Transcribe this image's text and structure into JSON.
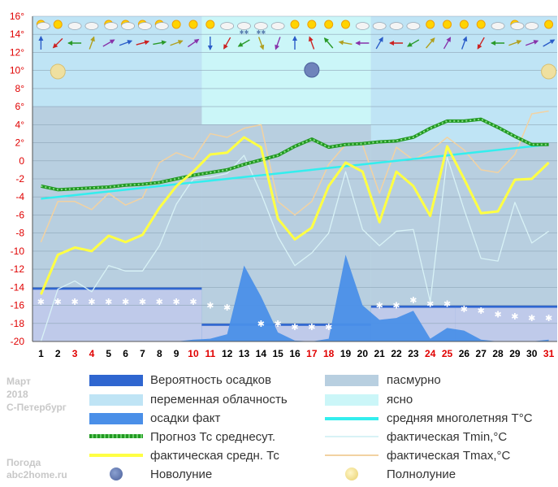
{
  "caption": {
    "month": "Март",
    "year": "2018",
    "city": "С-Петербург",
    "site_label": "Погода",
    "site": "abc2home.ru"
  },
  "colors": {
    "weekend": "#e00000",
    "weekday": "#000000",
    "ytick": "#e00000",
    "overcast": "#b8cfe0",
    "variable": "#bfe4f5",
    "clear": "#cbf6f8",
    "precip_prob": "#2f66d0",
    "precip_fact": "#4a8fe8",
    "forecast": "#229922",
    "actual_avg": "#ffff44",
    "norm": "#33eeee",
    "tmin": "#d8f2f6",
    "tmax": "#f2d2a2"
  },
  "legend": [
    {
      "key": "precip_prob",
      "label": "Вероятность осадков"
    },
    {
      "key": "overcast",
      "label": "пасмурно"
    },
    {
      "key": "variable",
      "label": "переменная облачность"
    },
    {
      "key": "clear",
      "label": "ясно"
    },
    {
      "key": "precip_fact",
      "label": "осадки факт"
    },
    {
      "key": "norm",
      "label": "средняя многолетняя T°C"
    },
    {
      "key": "forecast",
      "label": "Прогноз Тс среднесут."
    },
    {
      "key": "tmin",
      "label": "фактическая Tmin,°C"
    },
    {
      "key": "actual_avg",
      "label": "фактическая средн. Тс"
    },
    {
      "key": "tmax",
      "label": "фактическая Tmax,°C"
    },
    {
      "key": "new_moon",
      "label": "Новолуние"
    },
    {
      "key": "full_moon",
      "label": "Полнолуние"
    }
  ],
  "chart_data": {
    "type": "line",
    "title": "",
    "xlabel": "",
    "ylabel": "",
    "x": [
      1,
      2,
      3,
      4,
      5,
      6,
      7,
      8,
      9,
      10,
      11,
      12,
      13,
      14,
      15,
      16,
      17,
      18,
      19,
      20,
      21,
      22,
      23,
      24,
      25,
      26,
      27,
      28,
      29,
      30,
      31
    ],
    "weekend_days": [
      3,
      4,
      10,
      11,
      17,
      18,
      24,
      25,
      31
    ],
    "ylim": [
      -20,
      16
    ],
    "yticks": [
      16,
      14,
      12,
      10,
      8,
      6,
      4,
      2,
      0,
      -2,
      -4,
      -6,
      -8,
      -10,
      -12,
      -14,
      -16,
      -18,
      -20
    ],
    "ytick_labels": [
      "16°",
      "14°",
      "12°",
      "10°",
      "8°",
      "6°",
      "4°",
      "2°",
      "0",
      "-2",
      "-4",
      "-6",
      "-8",
      "-10",
      "-12",
      "-14",
      "-16",
      "-18",
      "-20"
    ],
    "cloudiness_periods": [
      {
        "from": 1,
        "to": 10,
        "kind": "variable"
      },
      {
        "from": 11,
        "to": 20,
        "kind": "clear"
      },
      {
        "from": 21,
        "to": 31,
        "kind": "variable"
      }
    ],
    "overcast_bands": [
      {
        "from": 1,
        "to": 10,
        "y_from": -20,
        "y_to": 6
      },
      {
        "from": 11,
        "to": 20,
        "y_from": -20,
        "y_to": 4
      },
      {
        "from": 21,
        "to": 31,
        "y_from": -20,
        "y_to": 2
      }
    ],
    "precipitation_probability": [
      {
        "from": 1,
        "to": 10,
        "level": -14
      },
      {
        "from": 11,
        "to": 20,
        "level": -18
      },
      {
        "from": 21,
        "to": 25,
        "level": -16
      },
      {
        "from": 26,
        "to": 31,
        "level": -16
      }
    ],
    "series": [
      {
        "name": "средняя многолетняя T°C",
        "key": "norm",
        "values": [
          -4.2,
          -4.0,
          -3.8,
          -3.6,
          -3.4,
          -3.2,
          -3.0,
          -2.8,
          -2.6,
          -2.4,
          -2.2,
          -2.0,
          -1.8,
          -1.6,
          -1.4,
          -1.2,
          -1.0,
          -0.8,
          -0.6,
          -0.4,
          -0.2,
          0.0,
          0.2,
          0.4,
          0.6,
          0.8,
          1.0,
          1.2,
          1.4,
          1.6,
          1.8
        ]
      },
      {
        "name": "Прогноз Тс среднесут.",
        "key": "forecast",
        "values": [
          -2.8,
          -3.2,
          -3.1,
          -3.0,
          -2.9,
          -2.7,
          -2.6,
          -2.4,
          -2.0,
          -1.6,
          -1.3,
          -1.0,
          -0.4,
          0.1,
          0.6,
          1.6,
          2.4,
          1.5,
          1.8,
          1.9,
          2.1,
          2.2,
          2.6,
          3.6,
          4.4,
          4.4,
          4.6,
          3.7,
          2.7,
          1.8,
          1.8
        ]
      },
      {
        "name": "фактическая Tmin,°C",
        "key": "tmin",
        "values": [
          -20.0,
          -14.2,
          -13.3,
          -14.5,
          -11.6,
          -12.2,
          -12.2,
          -9.4,
          -4.8,
          -2.0,
          -1.8,
          -1.4,
          0.6,
          -3.6,
          -8.4,
          -11.6,
          -10.2,
          -8.0,
          -1.2,
          -7.6,
          -9.4,
          -7.8,
          -7.6,
          -15.6,
          0.4,
          -5.4,
          -10.8,
          -11.1,
          -4.6,
          -9.1,
          -7.8
        ]
      },
      {
        "name": "фактическая Tmax,°C",
        "key": "tmax",
        "values": [
          -9.0,
          -4.5,
          -4.5,
          -5.4,
          -3.6,
          -4.9,
          -4.1,
          -0.2,
          0.9,
          0.2,
          3.0,
          2.6,
          3.6,
          4.0,
          -4.5,
          -6.0,
          -4.5,
          -0.4,
          1.8,
          1.8,
          -3.6,
          1.5,
          0.1,
          1.1,
          2.6,
          1.2,
          -1.0,
          -1.3,
          0.7,
          5.2,
          5.5
        ]
      },
      {
        "name": "фактическая средн. Тс",
        "key": "actual_avg",
        "values": [
          -14.8,
          -10.4,
          -9.6,
          -10.0,
          -8.3,
          -9.0,
          -8.2,
          -5.2,
          -2.8,
          -1.2,
          0.7,
          0.9,
          2.6,
          1.5,
          -6.4,
          -8.7,
          -7.4,
          -2.8,
          -0.2,
          -1.2,
          -6.8,
          -1.2,
          -2.8,
          -6.1,
          1.6,
          -2.0,
          -5.8,
          -5.6,
          -2.1,
          -2.0,
          -0.2
        ]
      },
      {
        "name": "осадки факт",
        "key": "precip_fact",
        "values": [
          -20.0,
          -20.0,
          -20.0,
          -20.0,
          -20.0,
          -20.0,
          -20.0,
          -20.0,
          -20.0,
          -19.8,
          -19.7,
          -19.2,
          -11.6,
          -15.0,
          -19.0,
          -19.9,
          -20.0,
          -19.7,
          -10.4,
          -16.0,
          -17.6,
          -17.4,
          -16.6,
          -19.7,
          -18.5,
          -18.8,
          -19.8,
          -20.0,
          -20.0,
          -20.0,
          -19.8
        ]
      }
    ],
    "new_moon_day": 17,
    "full_moon_days": [
      2,
      31
    ],
    "snow_markers": [
      {
        "day": 1,
        "y": -15.6
      },
      {
        "day": 2,
        "y": -15.6
      },
      {
        "day": 3,
        "y": -15.6
      },
      {
        "day": 4,
        "y": -15.6
      },
      {
        "day": 5,
        "y": -15.6
      },
      {
        "day": 6,
        "y": -15.6
      },
      {
        "day": 7,
        "y": -15.6
      },
      {
        "day": 8,
        "y": -15.6
      },
      {
        "day": 9,
        "y": -15.6
      },
      {
        "day": 10,
        "y": -15.6
      },
      {
        "day": 11,
        "y": -16.0
      },
      {
        "day": 12,
        "y": -16.2
      },
      {
        "day": 14,
        "y": -18.0
      },
      {
        "day": 15,
        "y": -18.0
      },
      {
        "day": 16,
        "y": -18.4
      },
      {
        "day": 17,
        "y": -18.4
      },
      {
        "day": 18,
        "y": -18.4
      },
      {
        "day": 21,
        "y": -16.0
      },
      {
        "day": 22,
        "y": -16.0
      },
      {
        "day": 23,
        "y": -15.4
      },
      {
        "day": 24,
        "y": -15.8
      },
      {
        "day": 25,
        "y": -15.8
      },
      {
        "day": 26,
        "y": -16.4
      },
      {
        "day": 27,
        "y": -16.6
      },
      {
        "day": 28,
        "y": -17.0
      },
      {
        "day": 29,
        "y": -17.2
      },
      {
        "day": 30,
        "y": -17.4
      },
      {
        "day": 31,
        "y": -17.4
      }
    ],
    "weather_icons": [
      "sun-cloud",
      "sun",
      "cloud",
      "cloud",
      "sun-cloud",
      "sun-cloud",
      "sun-cloud",
      "sun-cloud",
      "sun",
      "sun",
      "sun",
      "cloud",
      "cloud-snow",
      "cloud-snow",
      "cloud",
      "sun",
      "sun",
      "sun",
      "sun",
      "cloud",
      "cloud",
      "cloud",
      "cloud",
      "sun",
      "sun",
      "sun",
      "sun",
      "cloud",
      "sun-cloud",
      "cloud",
      "sun"
    ],
    "wind_dirs": [
      180,
      45,
      90,
      200,
      240,
      250,
      255,
      260,
      250,
      235,
      0,
      30,
      60,
      340,
      20,
      180,
      160,
      140,
      100,
      90,
      210,
      90,
      60,
      220,
      210,
      200,
      30,
      90,
      250,
      250,
      240
    ]
  }
}
